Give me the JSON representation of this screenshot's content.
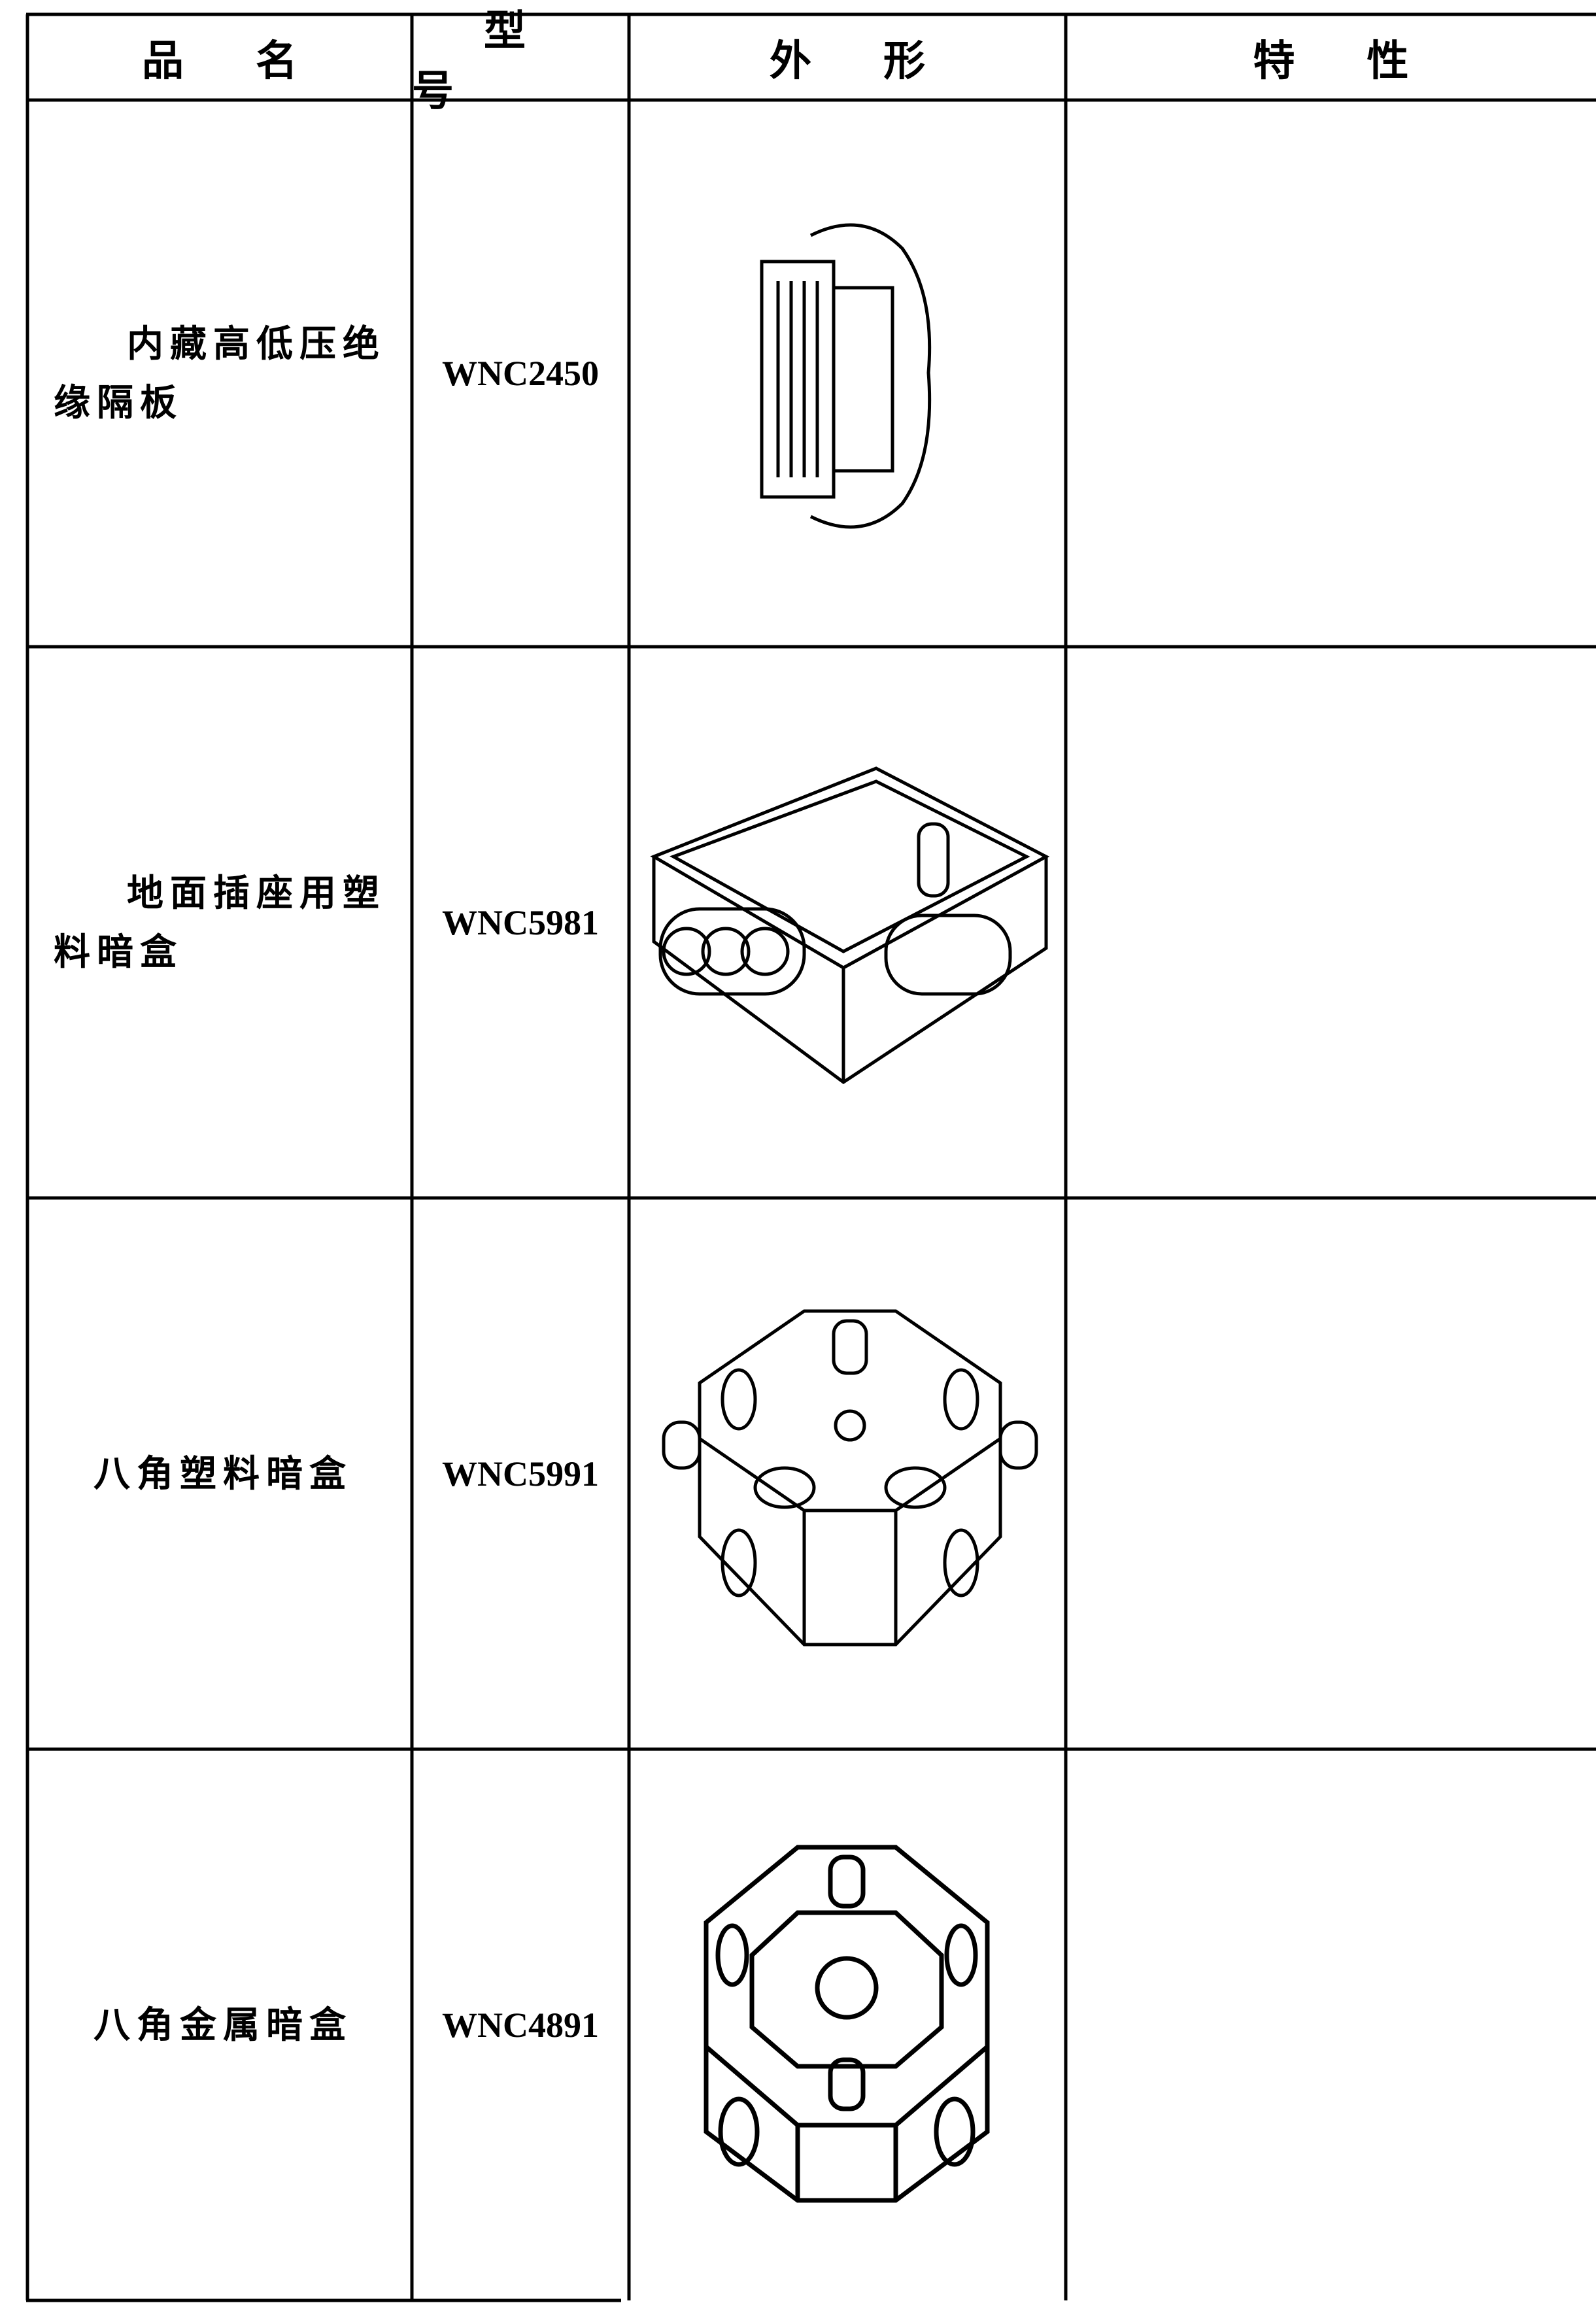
{
  "table": {
    "header": [
      "品名",
      "型号",
      "外形",
      "特性"
    ],
    "rows": [
      [
        "内藏高低压绝缘隔板",
        "WNC2450"
      ],
      [
        "地面插座用塑料暗盒",
        "WNC5981"
      ],
      [
        "八角塑料暗盒",
        "WNC5991"
      ],
      [
        "八角金属暗盒",
        "WNC4891"
      ]
    ]
  }
}
